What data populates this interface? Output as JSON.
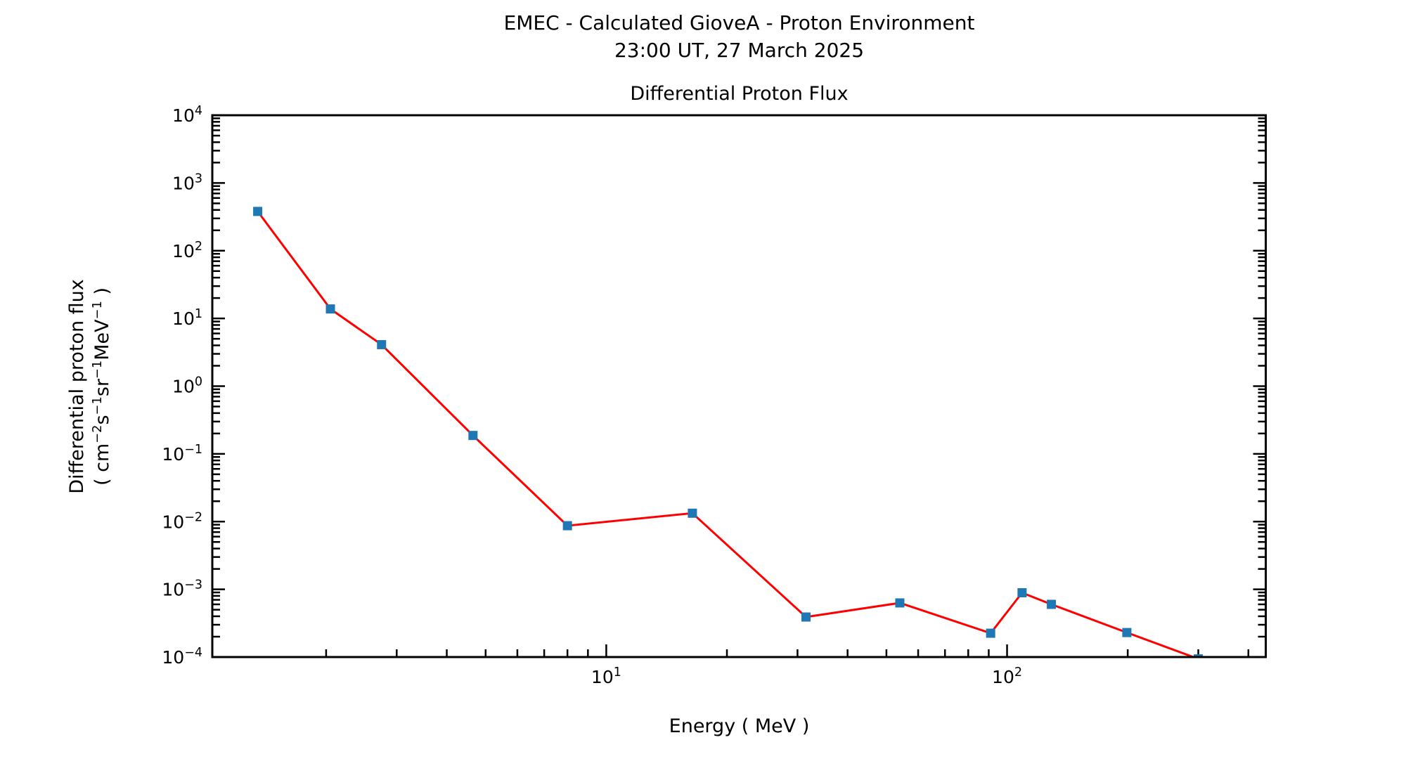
{
  "figure": {
    "title_line1": "EMEC - Calculated GioveA - Proton Environment",
    "title_line2": "23:00 UT, 27 March 2025"
  },
  "chart_data": {
    "type": "line",
    "title": "EMEC - Calculated GioveA - Proton Environment",
    "subtitle": "23:00 UT, 27 March 2025",
    "axes_title": "Differential Proton Flux",
    "xlabel": "Energy ( MeV )",
    "ylabel_line1": "Differential proton flux",
    "ylabel_line2_segments": [
      {
        "t": "( cm"
      },
      {
        "sup": "−2"
      },
      {
        "t": "s"
      },
      {
        "sup": "−1"
      },
      {
        "t": "sr"
      },
      {
        "sup": "−1"
      },
      {
        "t": "MeV"
      },
      {
        "sup": "−1"
      },
      {
        "t": " )"
      }
    ],
    "xscale": "log",
    "yscale": "log",
    "xlim": [
      1.04,
      442
    ],
    "ylim": [
      0.0001,
      10000
    ],
    "x_major_tick_exponents": [
      1,
      2
    ],
    "y_major_tick_exponents": [
      4,
      3,
      2,
      1,
      0,
      -1,
      -2,
      -3,
      -4
    ],
    "grid": false,
    "legend": null,
    "frame_color": "#000000",
    "series": [
      {
        "name": "differential proton flux",
        "line_color": "#ff0000",
        "marker": "square",
        "marker_color": "#1f77b4",
        "x": [
          1.35,
          2.05,
          2.75,
          4.65,
          8.0,
          16.4,
          31.5,
          54,
          91,
          109,
          129,
          199,
          300
        ],
        "y": [
          380,
          13.8,
          4.1,
          0.187,
          0.0087,
          0.0133,
          0.00039,
          0.00063,
          0.000225,
          0.00089,
          0.0006,
          0.00023,
          9.4e-05
        ]
      }
    ]
  }
}
